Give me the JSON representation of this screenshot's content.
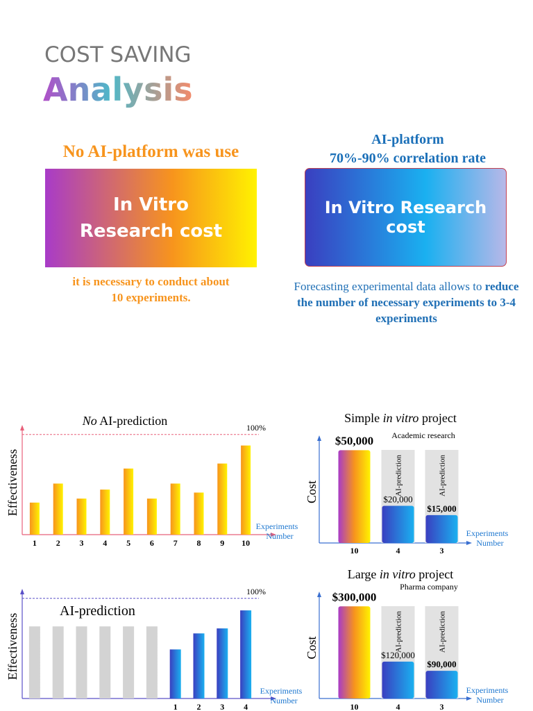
{
  "header": {
    "line1": "COST SAVING",
    "line2": "Analysis"
  },
  "left_panel": {
    "heading": "No AI-platform was use",
    "box": "In Vitro Research cost",
    "note": "it is necessary to conduct about 10 experiments."
  },
  "right_panel": {
    "heading": [
      "AI-platform",
      "70%-90% correlation rate"
    ],
    "box": "In Vitro Research cost",
    "note": "Forecasting experimental data allows to",
    "note_bold": "reduce the number of necessary experiments to 3-4 experiments"
  },
  "chart_data": [
    {
      "type": "bar",
      "title": [
        "No",
        "AI-prediction"
      ],
      "title_italic": [
        true,
        false
      ],
      "y_label": "Effectiveness",
      "x_label": [
        "Experiments",
        "Number"
      ],
      "categories": [
        "1",
        "2",
        "3",
        "4",
        "5",
        "6",
        "7",
        "8",
        "9",
        "10"
      ],
      "values": [
        32,
        51,
        36,
        45,
        66,
        36,
        51,
        42,
        71,
        89
      ],
      "ylim": [
        0,
        104
      ],
      "ref_line": {
        "value": 100,
        "label": "100%"
      },
      "bar_gradient": [
        "#f7941d",
        "#fff200"
      ],
      "axis_color": "#e8607a"
    },
    {
      "type": "bar",
      "title": [
        "Simple",
        "in vitro",
        "project"
      ],
      "title_italic": [
        false,
        true,
        false
      ],
      "subtitle": "Academic research",
      "y_label": "Cost",
      "x_label": [
        "Experiments",
        "Number"
      ],
      "categories": [
        "10",
        "4",
        "3"
      ],
      "values": [
        50000,
        20000,
        15000
      ],
      "value_labels": [
        "$50,000",
        "$20,000",
        "$15,000"
      ],
      "ylim": [
        0,
        55000
      ],
      "highlight": [
        false,
        true,
        true
      ],
      "highlight_label": "AI-prediction",
      "bar_gradient": [
        "#a83bc8",
        "#f7941d",
        "#fff200"
      ],
      "highlight_gradient": [
        "#3a3fc0",
        "#1ab0f0"
      ],
      "axis_color": "#3a6fd0"
    },
    {
      "type": "bar",
      "title": [
        "AI-prediction"
      ],
      "title_italic": [
        false
      ],
      "y_label": "Effectiveness",
      "x_label": [
        "Experiments",
        "Number"
      ],
      "categories": [
        null,
        null,
        null,
        null,
        null,
        null,
        "1",
        "2",
        "3",
        "4"
      ],
      "values": [
        72,
        72,
        72,
        72,
        72,
        72,
        49,
        65,
        70,
        88
      ],
      "ylim": [
        0,
        104
      ],
      "ref_line": {
        "value": 100,
        "label": "100%"
      },
      "highlight": [
        false,
        false,
        false,
        false,
        false,
        false,
        true,
        true,
        true,
        true
      ],
      "bar_gradient": [
        "#d3d3d3",
        "#d3d3d3"
      ],
      "highlight_gradient": [
        "#3a3fc0",
        "#1ab0f0"
      ],
      "axis_color": "#5a50c8"
    },
    {
      "type": "bar",
      "title": [
        "Large",
        "in vitro",
        "project"
      ],
      "title_italic": [
        false,
        true,
        false
      ],
      "subtitle": "Pharma company",
      "y_label": "Cost",
      "x_label": [
        "Experiments",
        "Number"
      ],
      "categories": [
        "10",
        "4",
        "3"
      ],
      "values": [
        300000,
        120000,
        90000
      ],
      "value_labels": [
        "$300,000",
        "$120,000",
        "$90,000"
      ],
      "ylim": [
        0,
        330000
      ],
      "highlight": [
        false,
        true,
        true
      ],
      "highlight_label": "AI-prediction",
      "bar_gradient": [
        "#a83bc8",
        "#f7941d",
        "#fff200"
      ],
      "highlight_gradient": [
        "#3a3fc0",
        "#1ab0f0"
      ],
      "axis_color": "#3a6fd0"
    }
  ]
}
